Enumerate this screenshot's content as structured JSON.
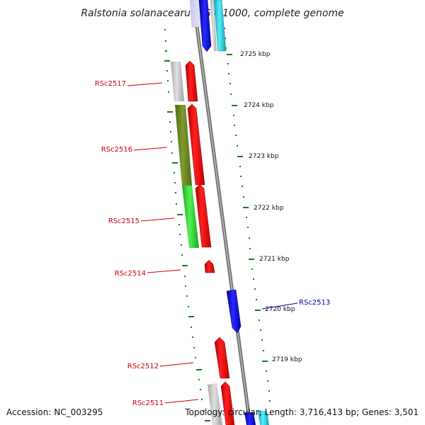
{
  "title": "Ralstonia solanacearum GMI1000, complete genome",
  "accession": "Accession: NC_003295",
  "summary": "Topology: circular; Length: 3,716,413 bp; Genes: 3,501",
  "colors": {
    "forward_red": "#ff1111",
    "reverse_blue": "#1a1aff",
    "cyan": "#22d8e8",
    "gray": "#c8c8c8",
    "olive": "#6e8a22",
    "green": "#33dd33",
    "tick_green": "#1a7a1a",
    "backbone": "#8a8a8a",
    "label_red": "#cc0000",
    "label_blue": "#0000bb"
  },
  "kbp_ticks": [
    "2725 kbp",
    "2724 kbp",
    "2723 kbp",
    "2722 kbp",
    "2721 kbp",
    "2720 kbp",
    "2719 kbp"
  ],
  "gene_labels": [
    {
      "name": "RSc2517",
      "color": "red"
    },
    {
      "name": "RSc2516",
      "color": "red"
    },
    {
      "name": "RSc2515",
      "color": "red"
    },
    {
      "name": "RSc2514",
      "color": "red"
    },
    {
      "name": "RSc2513",
      "color": "blue"
    },
    {
      "name": "RSc2512",
      "color": "red"
    },
    {
      "name": "RSc2511",
      "color": "red"
    }
  ]
}
